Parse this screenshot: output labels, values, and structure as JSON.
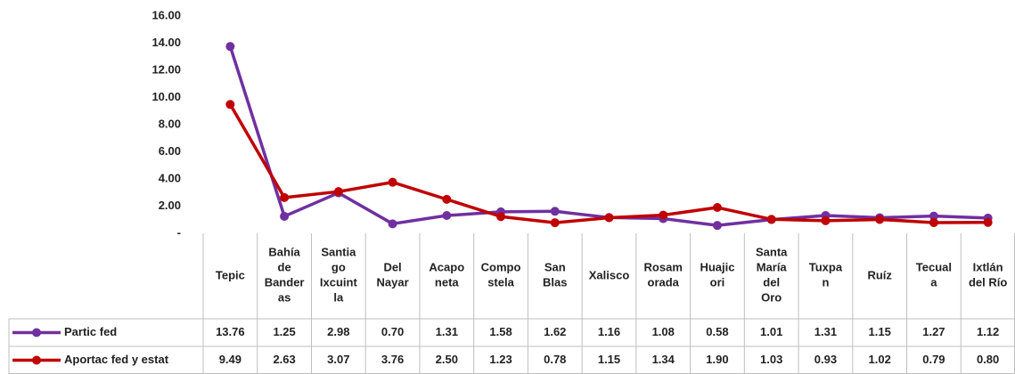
{
  "chart_data": {
    "type": "line",
    "categories": [
      "Tepic",
      "Bahía\nde\nBander\nas",
      "Santia\ngo\nIxcuint\nla",
      "Del\nNayar",
      "Acapo\nneta",
      "Compo\nstela",
      "San\nBlas",
      "Xalisco",
      "Rosam\norada",
      "Huajic\nori",
      "Santa\nMaría\ndel\nOro",
      "Tuxpa\nn",
      "Ruíz",
      "Tecual\na",
      "Ixtlán\ndel Río"
    ],
    "series": [
      {
        "name": "Partic fed",
        "color": "#7030a0",
        "values": [
          13.76,
          1.25,
          2.98,
          0.7,
          1.31,
          1.58,
          1.62,
          1.16,
          1.08,
          0.58,
          1.01,
          1.31,
          1.15,
          1.27,
          1.12
        ],
        "value_labels": [
          "13.76",
          "1.25",
          "2.98",
          "0.70",
          "1.31",
          "1.58",
          "1.62",
          "1.16",
          "1.08",
          "0.58",
          "1.01",
          "1.31",
          "1.15",
          "1.27",
          "1.12"
        ]
      },
      {
        "name": "Aportac fed y estat",
        "color": "#c00000",
        "values": [
          9.49,
          2.63,
          3.07,
          3.76,
          2.5,
          1.23,
          0.78,
          1.15,
          1.34,
          1.9,
          1.03,
          0.93,
          1.02,
          0.79,
          0.8
        ],
        "value_labels": [
          "9.49",
          "2.63",
          "3.07",
          "3.76",
          "2.50",
          "1.23",
          "0.78",
          "1.15",
          "1.34",
          "1.90",
          "1.03",
          "0.93",
          "1.02",
          "0.79",
          "0.80"
        ]
      }
    ],
    "ylim": [
      0,
      16
    ],
    "yticks": [
      {
        "value": 0,
        "label": "-"
      },
      {
        "value": 2,
        "label": "2.00"
      },
      {
        "value": 4,
        "label": "4.00"
      },
      {
        "value": 6,
        "label": "6.00"
      },
      {
        "value": 8,
        "label": "8.00"
      },
      {
        "value": 10,
        "label": "10.00"
      },
      {
        "value": 12,
        "label": "12.00"
      },
      {
        "value": 14,
        "label": "14.00"
      },
      {
        "value": 16,
        "label": "16.00"
      }
    ]
  }
}
